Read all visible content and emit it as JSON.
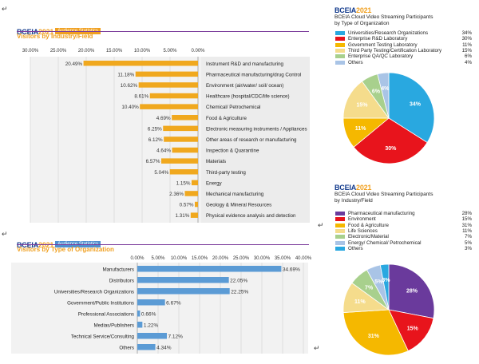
{
  "logo": {
    "text": "BCEIA",
    "year": "2021"
  },
  "paragraph_marks": [
    "↵",
    "↵",
    "↵",
    "↵"
  ],
  "chart_data": [
    {
      "type": "bar",
      "orientation": "horizontal",
      "badge": "Audience Statistics",
      "title": "Visitors by Industry/Field",
      "axis_ticks": [
        "30.00%",
        "25.00%",
        "20.00%",
        "15.00%",
        "10.00%",
        "5.00%",
        "0.00%"
      ],
      "xlim": [
        0,
        30
      ],
      "categories": [
        "Instrument R&D and manufacturing",
        "Pharmaceutical manufacturing/drug Control",
        "Environment (air/water/ soil/ ocean)",
        "Healthcare (hospital/CDC/life science)",
        "Chemical/ Petrochemical",
        "Food & Agriculture",
        "Electronic measuring instruments / Appliances",
        "Other areas of research or manufacturing",
        "Inspection & Quarantine",
        "Materials",
        "Third-party testing",
        "Energy",
        "Mechanical manufacturing",
        "Geology & Mineral Resources",
        "Physical evidence analysis and detection"
      ],
      "values": [
        20.49,
        11.18,
        10.62,
        8.61,
        10.4,
        4.69,
        6.25,
        6.12,
        4.64,
        6.57,
        5.04,
        1.15,
        2.36,
        0.57,
        1.31
      ],
      "labels": [
        "20.49%",
        "11.18%",
        "10.62%",
        "8.61%",
        "10.40%",
        "4.69%",
        "6.25%",
        "6.12%",
        "4.64%",
        "6.57%",
        "5.04%",
        "1.15%",
        "2.36%",
        "0.57%",
        "1.31%"
      ],
      "color": "#f0a81e"
    },
    {
      "type": "bar",
      "orientation": "horizontal",
      "badge": "Audience Statistics",
      "title": "Visitors by Type of Organization",
      "axis_ticks": [
        "0.00%",
        "5.00%",
        "10.00%",
        "15.00%",
        "20.00%",
        "25.00%",
        "30.00%",
        "35.00%",
        "40.00%"
      ],
      "xlim": [
        0,
        40
      ],
      "categories": [
        "Manufacturers",
        "Distributors",
        "Universities/Research Organizations",
        "Government/Public Institutions",
        "Professional Associations",
        "Medias/Publishers",
        "Technical Service/Consulting",
        "Others"
      ],
      "values": [
        34.69,
        22.05,
        22.25,
        6.67,
        0.66,
        1.22,
        7.12,
        4.34
      ],
      "labels": [
        "34.69%",
        "22.05%",
        "22.25%",
        "6.67%",
        "0.66%",
        "1.22%",
        "7.12%",
        "4.34%"
      ],
      "color": "#5b9bd5"
    },
    {
      "type": "pie",
      "title_line1": "BCEIA Cloud Video Streaming Participants",
      "title_line2": "by Type of Organization",
      "categories": [
        "Universities/Research Organizations",
        "Enterprise R&D Laboratory",
        "Government Testing Laboratory",
        "Third Party Testing/Certification Laboratory",
        "Enterprise QA/QC Laboratory",
        "Others"
      ],
      "values": [
        34,
        30,
        11,
        15,
        6,
        4
      ],
      "legend_values": [
        "34%",
        "30%",
        "11%",
        "15%",
        "6%",
        "4%"
      ],
      "slice_labels": [
        "34%",
        "30%",
        "11%",
        "15%",
        "6%",
        "4%"
      ],
      "colors": [
        "#29a8e0",
        "#e8141c",
        "#f5b800",
        "#f5dc8c",
        "#a8d08d",
        "#a9c4e6"
      ]
    },
    {
      "type": "pie",
      "title_line1": "BCEIA Cloud Video Streaming Participants",
      "title_line2": "by Industry/Field",
      "categories": [
        "Pharmaceutical manufacturing",
        "Environment",
        "Food & Agriculture",
        "Life Sciences",
        "Electronic/Material",
        "Energy/ Chemical/ Petrochemical",
        "Others"
      ],
      "values": [
        28,
        15,
        31,
        11,
        7,
        5,
        3
      ],
      "legend_values": [
        "28%",
        "15%",
        "31%",
        "11%",
        "7%",
        "5%",
        "3%"
      ],
      "slice_labels": [
        "28%",
        "15%",
        "31%",
        "11%",
        "7%",
        "5%",
        "3%"
      ],
      "colors": [
        "#6a3a9c",
        "#e8141c",
        "#f5b800",
        "#f5dc8c",
        "#a8d08d",
        "#a9c4e6",
        "#29a8e0"
      ]
    }
  ]
}
